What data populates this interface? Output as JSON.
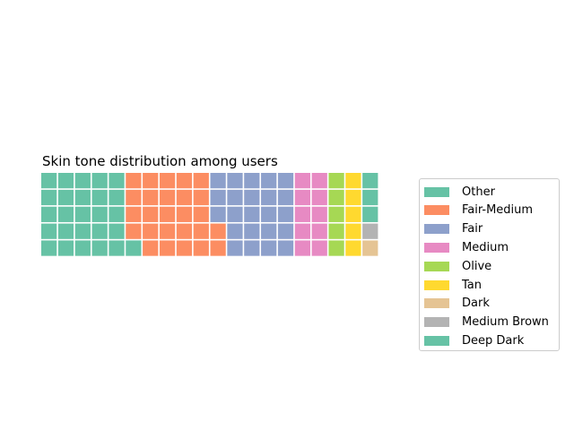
{
  "chart_data": {
    "type": "waffle",
    "title": "Skin tone distribution among users",
    "grid": {
      "rows": 5,
      "columns": 20
    },
    "categories": [
      "Other",
      "Fair-Medium",
      "Fair",
      "Medium",
      "Olive",
      "Tan",
      "Dark",
      "Medium Brown",
      "Deep Dark"
    ],
    "values": [
      26,
      26,
      23,
      10,
      5,
      5,
      1,
      1,
      3
    ],
    "colors": [
      "#66c2a5",
      "#fc8d62",
      "#8da0cb",
      "#e78ac3",
      "#a6d854",
      "#ffd92f",
      "#e5c494",
      "#b3b3b3",
      "#66c2a5"
    ],
    "fill_order": "column-major, bottom-to-top, left-to-right",
    "legend": {
      "placement": "right"
    }
  }
}
